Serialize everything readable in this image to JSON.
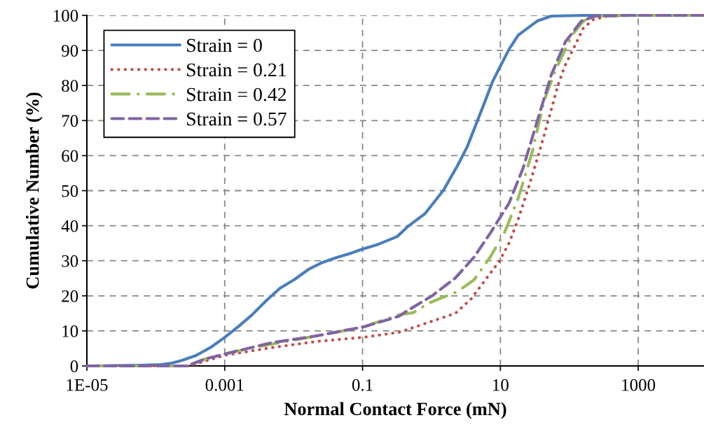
{
  "chart_data": {
    "type": "line",
    "xlabel": "Normal Contact Force (mN)",
    "ylabel": "Cumulative Number (%)",
    "log": "x",
    "grid": true,
    "legend": "top left",
    "marker": "none",
    "xlim": [
      1e-05,
      9000
    ],
    "xticks": [
      {
        "value": 1e-05,
        "label": "1E-05"
      },
      0.001,
      0.1,
      10,
      1000
    ],
    "ylim": [
      0,
      100
    ],
    "yticks": [
      0,
      10,
      20,
      30,
      40,
      50,
      60,
      70,
      80,
      90,
      100
    ],
    "series": [
      {
        "name": "Strain = 0",
        "color": "#4a7ebb",
        "line_style": "solid",
        "x": [
          1e-05,
          5.9e-05,
          0.000119,
          0.00017,
          0.000241,
          0.000385,
          0.000615,
          0.00098,
          0.00157,
          0.0025,
          0.004,
          0.00638,
          0.0102,
          0.0163,
          0.026,
          0.0415,
          0.0662,
          0.0986,
          0.169,
          0.318,
          0.462,
          0.811,
          1.49,
          2.38,
          3.3,
          4.47,
          6.07,
          7.66,
          9.68,
          13.4,
          18.2,
          34.3,
          54.7,
          160,
          9000
        ],
        "values": [
          0,
          0.2,
          0.4,
          0.8,
          1.6,
          3.0,
          5.2,
          8.0,
          11.2,
          14.6,
          18.6,
          22.2,
          24.6,
          27.5,
          29.5,
          30.9,
          32.1,
          33.3,
          34.7,
          36.9,
          39.9,
          43.5,
          50.1,
          57.1,
          62.5,
          69.1,
          75.8,
          81.0,
          85.0,
          90.4,
          94.4,
          98.4,
          99.8,
          100,
          100
        ]
      },
      {
        "name": "Strain = 0.21",
        "color": "#c0504d",
        "line_style": "dotted",
        "x": [
          1e-05,
          0.000305,
          0.00098,
          0.00471,
          0.022,
          0.106,
          0.341,
          2.22,
          3.79,
          6.07,
          9.68,
          13.4,
          18.2,
          24.7,
          34.3,
          43.3,
          54.7,
          69.2,
          87.3,
          118,
          160,
          223,
          356,
          769,
          9000
        ],
        "values": [
          0,
          0,
          3.0,
          5.2,
          7.0,
          8.2,
          9.6,
          15.0,
          19.2,
          24.6,
          29.9,
          35.1,
          41.9,
          49.9,
          59.1,
          65.9,
          73.1,
          80.4,
          85.8,
          91.0,
          96.4,
          98.8,
          99.8,
          100,
          100
        ]
      },
      {
        "name": "Strain = 0.42",
        "color": "#9bbb59",
        "line_style": "dashdot",
        "x": [
          1e-05,
          0.000284,
          0.000521,
          0.00133,
          0.00471,
          0.022,
          0.106,
          0.341,
          0.545,
          0.933,
          2.38,
          4.17,
          7.14,
          11.4,
          18.2,
          29.0,
          43.3,
          63.0,
          110,
          160,
          239,
          769,
          9000
        ],
        "values": [
          0,
          0,
          2.0,
          4.0,
          6.2,
          8.6,
          11.2,
          14.6,
          15.2,
          18.0,
          21.2,
          24.6,
          31.1,
          37.9,
          47.9,
          61.1,
          75.8,
          84.4,
          94.4,
          98.4,
          99.8,
          100,
          100
        ]
      },
      {
        "name": "Strain = 0.57",
        "color": "#8064a2",
        "line_style": "dashed",
        "x": [
          1e-05,
          0.000284,
          0.000521,
          0.00133,
          0.00471,
          0.022,
          0.106,
          0.341,
          0.402,
          1.02,
          2.22,
          4.17,
          7.14,
          13.4,
          21.4,
          34.3,
          54.7,
          87.3,
          150,
          239,
          769,
          9000
        ],
        "values": [
          0,
          0,
          2.0,
          4.0,
          6.6,
          8.6,
          11.2,
          14.2,
          15.2,
          20.0,
          25.1,
          31.1,
          37.9,
          46.5,
          56.5,
          69.9,
          83.0,
          92.4,
          98.4,
          99.8,
          100,
          100
        ]
      }
    ]
  }
}
